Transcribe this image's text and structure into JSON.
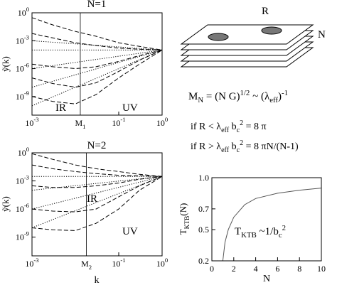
{
  "chart_data": [
    {
      "type": "line",
      "title": "N=1",
      "xlog": true,
      "ylog": true,
      "xlim": [
        0.001,
        1
      ],
      "ylim": [
        1e-11,
        1
      ],
      "xticks": [
        {
          "value": 0.001,
          "label": [
            "10",
            {
              "sup": "-3"
            }
          ]
        },
        {
          "value": 0.1,
          "label": [
            "10",
            {
              "sup": "-1"
            }
          ]
        },
        {
          "value": 1,
          "label": [
            "10",
            {
              "sup": "0"
            }
          ]
        }
      ],
      "yticks": [
        {
          "value": 1,
          "label": [
            "10",
            {
              "sup": "0"
            }
          ]
        },
        {
          "value": 0.001,
          "label": [
            "10",
            {
              "sup": "-3"
            }
          ]
        },
        {
          "value": 1e-06,
          "label": [
            "10",
            {
              "sup": "-6"
            }
          ]
        },
        {
          "value": 1e-09,
          "label": [
            "10",
            {
              "sup": "-9"
            }
          ]
        }
      ],
      "marker_line": {
        "value": 0.013,
        "label": [
          "M",
          {
            "sub": "1"
          }
        ]
      },
      "y_label": "ỹ(k)",
      "annotations": [
        "IR",
        "UV"
      ],
      "series": [
        {
          "color": "#000",
          "style": "dashed",
          "x": [
            0.001,
            0.003,
            0.01,
            0.03,
            0.1,
            0.3,
            1
          ],
          "values": [
            0.3,
            0.05,
            0.01,
            0.003,
            0.0006,
            0.00025,
            0.0001
          ]
        },
        {
          "color": "#000",
          "style": "dashed",
          "x": [
            0.001,
            0.003,
            0.01,
            0.03,
            0.1,
            0.3,
            1
          ],
          "values": [
            0.006,
            0.002,
            0.0006,
            0.0003,
            0.00016,
            0.00012,
            0.0001
          ]
        },
        {
          "color": "#000",
          "style": "dashed",
          "x": [
            0.001,
            0.003,
            0.01,
            0.03,
            0.1,
            0.3,
            1
          ],
          "values": [
            3e-06,
            1.6e-06,
            1e-06,
            1.6e-06,
            6e-06,
            2.5e-05,
            0.0001
          ]
        },
        {
          "color": "#000",
          "style": "dashed",
          "x": [
            0.001,
            0.003,
            0.01,
            0.03,
            0.1,
            0.3,
            1
          ],
          "values": [
            1e-07,
            2.5e-08,
            1e-08,
            3e-08,
            5e-07,
            8e-06,
            0.0001
          ]
        },
        {
          "color": "#000",
          "style": "dashed",
          "x": [
            0.001,
            0.003,
            0.01,
            0.03,
            0.1,
            0.3,
            1
          ],
          "values": [
            1e-09,
            3e-10,
            1.6e-10,
            1.6e-09,
            1e-07,
            3e-06,
            0.0001
          ]
        },
        {
          "color": "#000",
          "style": "dotted",
          "x": [
            0.001,
            1
          ],
          "values": [
            0.001,
            0.0001
          ]
        },
        {
          "color": "#000",
          "style": "dotted",
          "x": [
            0.001,
            1
          ],
          "values": [
            0.0001,
            0.0001
          ]
        },
        {
          "color": "#000",
          "style": "dotted",
          "x": [
            0.001,
            1
          ],
          "values": [
            1e-06,
            0.0001
          ]
        },
        {
          "color": "#000",
          "style": "dotted",
          "x": [
            0.001,
            1
          ],
          "values": [
            1e-08,
            0.0001
          ]
        },
        {
          "color": "#000",
          "style": "dotted",
          "x": [
            0.001,
            1
          ],
          "values": [
            1e-10,
            0.0001
          ]
        }
      ]
    },
    {
      "type": "line",
      "title": "N=2",
      "xlog": true,
      "ylog": true,
      "xlim": [
        0.001,
        1
      ],
      "ylim": [
        1e-11,
        1
      ],
      "xticks": [
        {
          "value": 0.001,
          "label": [
            "10",
            {
              "sup": "-3"
            }
          ]
        },
        {
          "value": 0.1,
          "label": [
            "10",
            {
              "sup": "-1"
            }
          ]
        },
        {
          "value": 1,
          "label": [
            "10",
            {
              "sup": "0"
            }
          ]
        }
      ],
      "yticks": [
        {
          "value": 1,
          "label": [
            "10",
            {
              "sup": "0"
            }
          ]
        },
        {
          "value": 0.001,
          "label": [
            "10",
            {
              "sup": "-3"
            }
          ]
        },
        {
          "value": 1e-06,
          "label": [
            "10",
            {
              "sup": "-6"
            }
          ]
        },
        {
          "value": 1e-09,
          "label": [
            "10",
            {
              "sup": "-9"
            }
          ]
        }
      ],
      "marker_line": {
        "value": 0.018,
        "label": [
          "M",
          {
            "sub": "2"
          }
        ]
      },
      "y_label": "ỹ(k)",
      "x_label": "k",
      "annotations": [
        "IR",
        "UV"
      ],
      "series": [
        {
          "color": "#000",
          "style": "dashed",
          "x": [
            0.001,
            0.003,
            0.01,
            0.03,
            0.1,
            0.3,
            1
          ],
          "values": [
            0.8,
            0.2,
            0.05,
            0.02,
            0.01,
            0.005,
            0.003
          ]
        },
        {
          "color": "#000",
          "style": "dashed",
          "x": [
            0.001,
            0.003,
            0.01,
            0.03,
            0.1,
            0.3,
            1
          ],
          "values": [
            0.05,
            0.02,
            0.01,
            0.006,
            0.004,
            0.0035,
            0.003
          ]
        },
        {
          "color": "#000",
          "style": "dashed",
          "x": [
            0.001,
            0.003,
            0.01,
            0.03,
            0.1,
            0.3,
            1
          ],
          "values": [
            0.0003,
            0.0002,
            0.0002,
            0.0003,
            0.0006,
            0.0015,
            0.003
          ]
        },
        {
          "color": "#000",
          "style": "dashed",
          "x": [
            0.001,
            0.003,
            0.01,
            0.03,
            0.1,
            0.3,
            1
          ],
          "values": [
            1e-06,
            6e-07,
            5e-07,
            1e-06,
            2e-05,
            0.0003,
            0.003
          ]
        },
        {
          "color": "#000",
          "style": "dashed",
          "x": [
            0.001,
            0.003,
            0.01,
            0.03,
            0.1,
            0.3,
            1
          ],
          "values": [
            1e-08,
            6e-09,
            5e-09,
            3e-08,
            1e-06,
            0.0001,
            0.003
          ]
        },
        {
          "color": "#000",
          "style": "dotted",
          "x": [
            0.001,
            1
          ],
          "values": [
            0.003,
            0.003
          ]
        },
        {
          "color": "#000",
          "style": "dotted",
          "x": [
            0.001,
            1
          ],
          "values": [
            0.0001,
            0.003
          ]
        },
        {
          "color": "#000",
          "style": "dotted",
          "x": [
            0.001,
            1
          ],
          "values": [
            1e-06,
            0.003
          ]
        },
        {
          "color": "#000",
          "style": "dotted",
          "x": [
            0.001,
            1
          ],
          "values": [
            1e-08,
            0.003
          ]
        }
      ]
    },
    {
      "type": "line",
      "xlog": false,
      "ylog": false,
      "xlim": [
        0,
        10
      ],
      "ylim": [
        0.2,
        1
      ],
      "xticks": [
        0,
        2,
        4,
        6,
        8,
        10
      ],
      "yticks": [
        {
          "value": 1,
          "label": "1.0"
        },
        0.7,
        0.5,
        0.2
      ],
      "y_label": [
        "T",
        {
          "sub": "KTB"
        },
        "(N)"
      ],
      "x_label": "N",
      "annotations": [
        [
          "T",
          {
            "sub": "KTB"
          },
          " ~1/b",
          {
            "sub": "c"
          },
          {
            "sup": "2"
          }
        ]
      ],
      "series": [
        {
          "color": "#555",
          "style": "solid",
          "x": [
            1,
            1.2,
            1.5,
            2,
            3,
            4,
            6,
            8,
            10
          ],
          "values": [
            0.2,
            0.38,
            0.5,
            0.62,
            0.74,
            0.8,
            0.85,
            0.88,
            0.9
          ]
        }
      ]
    }
  ],
  "diagram": {
    "labels": [
      "R",
      "N"
    ],
    "formula": [
      "M",
      {
        "sub": "N"
      },
      " = (N G)",
      {
        "sup": "1/2"
      },
      " ~  (λ",
      {
        "sub": "eff"
      },
      ")",
      {
        "sup": "-1"
      }
    ],
    "condition_1": [
      "if R < λ",
      {
        "sub": "eff"
      },
      "   b",
      {
        "sub": "c"
      },
      {
        "sup": "2"
      },
      " = 8 π"
    ],
    "condition_2": [
      "if R > λ",
      {
        "sub": "eff"
      },
      "   b",
      {
        "sub": "c"
      },
      {
        "sup": "2"
      },
      " = 8 πN/(N-1)"
    ]
  }
}
